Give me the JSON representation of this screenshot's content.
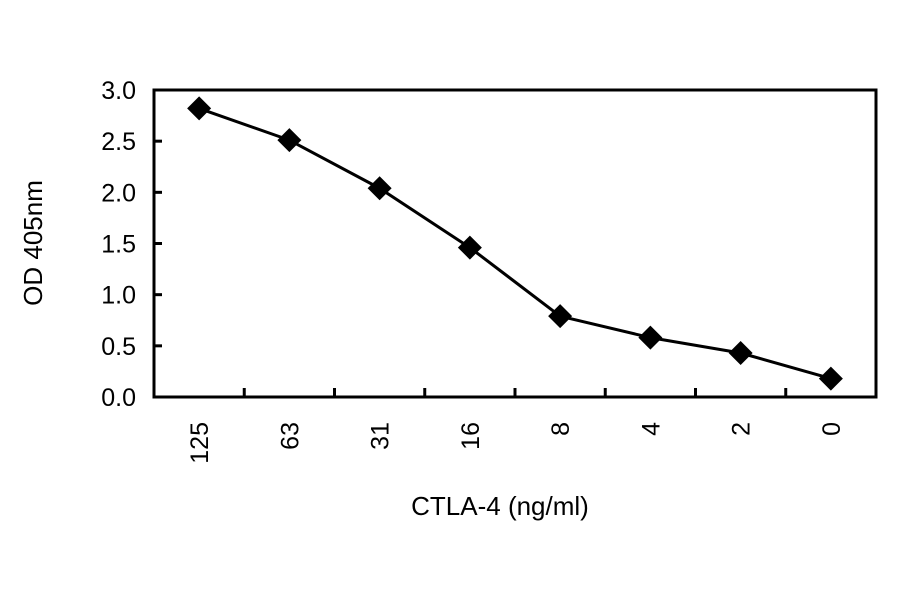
{
  "chart_data": {
    "type": "line",
    "title": "",
    "xlabel": "CTLA-4 (ng/ml)",
    "ylabel": "OD 405nm",
    "categories": [
      "125",
      "63",
      "31",
      "16",
      "8",
      "4",
      "2",
      "0"
    ],
    "series": [
      {
        "name": "CTLA-4",
        "marker": "diamond",
        "color": "#000000",
        "values": [
          2.82,
          2.51,
          2.04,
          1.46,
          0.79,
          0.58,
          0.43,
          0.18
        ]
      }
    ],
    "ylim": [
      0.0,
      3.0
    ],
    "yticks": [
      "0.0",
      "0.5",
      "1.0",
      "1.5",
      "2.0",
      "2.5",
      "3.0"
    ],
    "grid": false,
    "legend": null,
    "x_tick_label_rotation": -90
  }
}
